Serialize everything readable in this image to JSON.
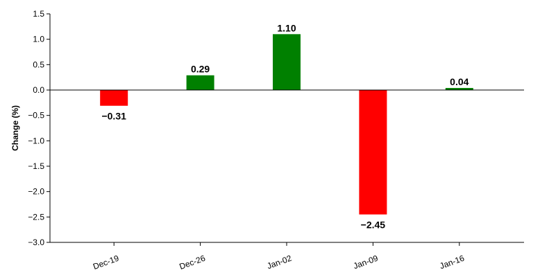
{
  "chart_data": {
    "type": "bar",
    "y_label": "Change (%)",
    "categories": [
      "Dec-19",
      "Dec-26",
      "Jan-02",
      "Jan-09",
      "Jan-16"
    ],
    "values": [
      -0.31,
      0.29,
      1.1,
      -2.45,
      0.04
    ],
    "value_labels": [
      "−0.31",
      "0.29",
      "1.10",
      "−2.45",
      "0.04"
    ],
    "colors": [
      "#ff0000",
      "#008000",
      "#008000",
      "#ff0000",
      "#008000"
    ],
    "ylim": [
      -3,
      1.5
    ],
    "yticks": [
      {
        "value": -3,
        "label": "−3.0"
      },
      {
        "value": -2.5,
        "label": "−2.5"
      },
      {
        "value": -2,
        "label": "−2.0"
      },
      {
        "value": -1.5,
        "label": "−1.5"
      },
      {
        "value": -1,
        "label": "−1.0"
      },
      {
        "value": -0.5,
        "label": "−0.5"
      },
      {
        "value": 0,
        "label": "0.0"
      },
      0.5,
      {
        "value": 1,
        "label": "1.0"
      },
      1.5
    ],
    "grid": false
  }
}
